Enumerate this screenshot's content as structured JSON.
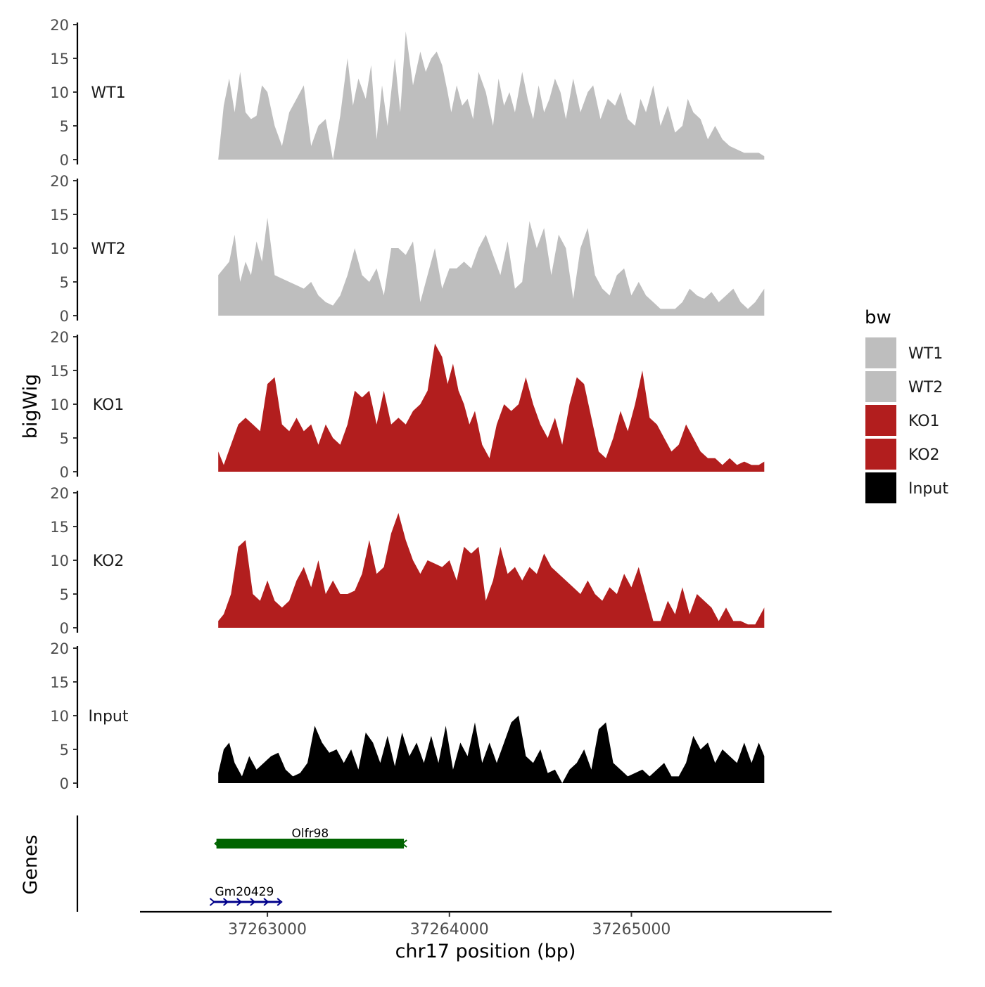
{
  "chart_data": {
    "type": "area",
    "title": "",
    "xlabel": "chr17 position (bp)",
    "ylabel": "bigWig",
    "genes_label": "Genes",
    "x_range": [
      37262300,
      37266100
    ],
    "y_range": [
      0,
      20
    ],
    "y_ticks": [
      0,
      5,
      10,
      15,
      20
    ],
    "y_tick_labels": [
      "0",
      "5",
      "10",
      "15",
      "20"
    ],
    "x_ticks": [
      37263000,
      37264000,
      37265000
    ],
    "x_tick_labels": [
      "37263000",
      "37264000",
      "37265000"
    ],
    "legend": {
      "title": "bw",
      "position": "right",
      "entries": [
        {
          "label": "WT1",
          "color": "#bebebe"
        },
        {
          "label": "WT2",
          "color": "#bebebe"
        },
        {
          "label": "KO1",
          "color": "#b21e1e"
        },
        {
          "label": "KO2",
          "color": "#b21e1e"
        },
        {
          "label": "Input",
          "color": "#000000"
        }
      ]
    },
    "series": [
      {
        "name": "WT1",
        "color": "#bebebe",
        "x": [
          37262730,
          37262760,
          37262790,
          37262820,
          37262850,
          37262880,
          37262910,
          37262940,
          37262970,
          37263000,
          37263040,
          37263080,
          37263120,
          37263160,
          37263200,
          37263240,
          37263280,
          37263320,
          37263360,
          37263400,
          37263440,
          37263470,
          37263500,
          37263540,
          37263570,
          37263600,
          37263630,
          37263660,
          37263700,
          37263730,
          37263760,
          37263800,
          37263840,
          37263870,
          37263900,
          37263930,
          37263960,
          37263990,
          37264010,
          37264040,
          37264070,
          37264100,
          37264130,
          37264160,
          37264200,
          37264240,
          37264270,
          37264300,
          37264330,
          37264360,
          37264400,
          37264430,
          37264460,
          37264490,
          37264520,
          37264550,
          37264580,
          37264610,
          37264640,
          37264680,
          37264720,
          37264760,
          37264790,
          37264830,
          37264870,
          37264910,
          37264940,
          37264980,
          37265020,
          37265050,
          37265080,
          37265120,
          37265160,
          37265200,
          37265240,
          37265280,
          37265310,
          37265340,
          37265380,
          37265420,
          37265460,
          37265500,
          37265540,
          37265580,
          37265620,
          37265660,
          37265700,
          37265730
        ],
        "y": [
          0,
          8,
          12,
          7,
          13,
          7,
          6,
          6.5,
          11,
          10,
          5,
          2,
          7,
          9,
          11,
          2,
          5,
          6,
          0,
          6.5,
          15,
          8,
          12,
          9,
          14,
          3,
          11,
          5,
          15,
          7,
          19,
          11,
          16,
          13,
          15,
          16,
          14,
          10,
          7,
          11,
          8,
          9,
          6,
          13,
          10,
          5,
          12,
          8,
          10,
          7,
          13,
          9,
          6,
          11,
          7,
          9,
          12,
          10,
          6,
          12,
          7,
          10,
          11,
          6,
          9,
          8,
          10,
          6,
          5,
          9,
          7,
          11,
          5,
          8,
          4,
          5,
          9,
          7,
          6,
          3,
          5,
          3,
          2,
          1.5,
          1,
          1,
          1,
          0.5
        ]
      },
      {
        "name": "WT2",
        "color": "#bebebe",
        "x": [
          37262730,
          37262760,
          37262790,
          37262820,
          37262850,
          37262880,
          37262910,
          37262940,
          37262970,
          37263000,
          37263040,
          37263080,
          37263120,
          37263160,
          37263200,
          37263240,
          37263280,
          37263320,
          37263360,
          37263400,
          37263440,
          37263480,
          37263520,
          37263560,
          37263600,
          37263640,
          37263680,
          37263720,
          37263760,
          37263800,
          37263840,
          37263880,
          37263920,
          37263960,
          37264000,
          37264040,
          37264080,
          37264120,
          37264160,
          37264200,
          37264240,
          37264280,
          37264320,
          37264360,
          37264400,
          37264440,
          37264480,
          37264520,
          37264560,
          37264600,
          37264640,
          37264680,
          37264720,
          37264760,
          37264800,
          37264840,
          37264880,
          37264920,
          37264960,
          37265000,
          37265040,
          37265080,
          37265120,
          37265160,
          37265200,
          37265240,
          37265280,
          37265320,
          37265360,
          37265400,
          37265440,
          37265480,
          37265520,
          37265560,
          37265600,
          37265640,
          37265680,
          37265730
        ],
        "y": [
          6,
          7,
          8,
          12,
          5,
          8,
          6,
          11,
          8,
          14.5,
          6,
          5.5,
          5,
          4.5,
          4,
          5,
          3,
          2,
          1.5,
          3,
          6,
          10,
          6,
          5,
          7,
          3,
          10,
          10,
          9,
          11,
          2,
          6,
          10,
          4,
          7,
          7,
          8,
          7,
          10,
          12,
          9,
          6,
          11,
          4,
          5,
          14,
          10,
          13,
          6,
          12,
          10,
          2.5,
          10,
          13,
          6,
          4,
          3,
          6,
          7,
          3,
          5,
          3,
          2,
          1,
          1,
          1,
          2,
          4,
          3,
          2.5,
          3.5,
          2,
          3,
          4,
          2,
          1,
          2,
          4
        ]
      },
      {
        "name": "KO1",
        "color": "#b21e1e",
        "x": [
          37262730,
          37262760,
          37262800,
          37262840,
          37262880,
          37262920,
          37262960,
          37263000,
          37263040,
          37263080,
          37263120,
          37263160,
          37263200,
          37263240,
          37263280,
          37263320,
          37263360,
          37263400,
          37263440,
          37263480,
          37263520,
          37263560,
          37263600,
          37263640,
          37263680,
          37263720,
          37263760,
          37263800,
          37263840,
          37263880,
          37263920,
          37263960,
          37263990,
          37264020,
          37264050,
          37264080,
          37264110,
          37264140,
          37264180,
          37264220,
          37264260,
          37264300,
          37264340,
          37264380,
          37264420,
          37264460,
          37264500,
          37264540,
          37264580,
          37264620,
          37264660,
          37264700,
          37264740,
          37264780,
          37264820,
          37264860,
          37264900,
          37264940,
          37264980,
          37265020,
          37265060,
          37265100,
          37265140,
          37265180,
          37265220,
          37265260,
          37265300,
          37265340,
          37265380,
          37265420,
          37265460,
          37265500,
          37265540,
          37265580,
          37265620,
          37265660,
          37265700,
          37265730
        ],
        "y": [
          3,
          1,
          4,
          7,
          8,
          7,
          6,
          13,
          14,
          7,
          6,
          8,
          6,
          7,
          4,
          7,
          5,
          4,
          7,
          12,
          11,
          12,
          7,
          12,
          7,
          8,
          7,
          9,
          10,
          12,
          19,
          17,
          13,
          16,
          12,
          10,
          7,
          9,
          4,
          2,
          7,
          10,
          9,
          10,
          14,
          10,
          7,
          5,
          8,
          4,
          10,
          14,
          13,
          8,
          3,
          2,
          5,
          9,
          6,
          10,
          15,
          8,
          7,
          5,
          3,
          4,
          7,
          5,
          3,
          2,
          2,
          1,
          2,
          1,
          1.5,
          1,
          1,
          1.5
        ]
      },
      {
        "name": "KO2",
        "color": "#b21e1e",
        "x": [
          37262730,
          37262760,
          37262800,
          37262840,
          37262880,
          37262920,
          37262960,
          37263000,
          37263040,
          37263080,
          37263120,
          37263160,
          37263200,
          37263240,
          37263280,
          37263320,
          37263360,
          37263400,
          37263440,
          37263480,
          37263520,
          37263560,
          37263600,
          37263640,
          37263680,
          37263720,
          37263760,
          37263800,
          37263840,
          37263880,
          37263920,
          37263960,
          37264000,
          37264040,
          37264080,
          37264120,
          37264160,
          37264200,
          37264240,
          37264280,
          37264320,
          37264360,
          37264400,
          37264440,
          37264480,
          37264520,
          37264560,
          37264600,
          37264640,
          37264680,
          37264720,
          37264760,
          37264800,
          37264840,
          37264880,
          37264920,
          37264960,
          37265000,
          37265040,
          37265080,
          37265120,
          37265160,
          37265200,
          37265240,
          37265280,
          37265320,
          37265360,
          37265400,
          37265440,
          37265480,
          37265520,
          37265560,
          37265600,
          37265640,
          37265680,
          37265730
        ],
        "y": [
          1,
          2,
          5,
          12,
          13,
          5,
          4,
          7,
          4,
          3,
          4,
          7,
          9,
          6,
          10,
          5,
          7,
          5,
          5,
          5.5,
          8,
          13,
          8,
          9,
          14,
          17,
          13,
          10,
          8,
          10,
          9.5,
          9,
          10,
          7,
          12,
          11,
          12,
          4,
          7,
          12,
          8,
          9,
          7,
          9,
          8,
          11,
          9,
          8,
          7,
          6,
          5,
          7,
          5,
          4,
          6,
          5,
          8,
          6,
          9,
          5,
          1,
          1,
          4,
          2,
          6,
          2,
          5,
          4,
          3,
          1,
          3,
          1,
          1,
          0.5,
          0.5,
          3
        ]
      },
      {
        "name": "Input",
        "color": "#000000",
        "x": [
          37262730,
          37262760,
          37262790,
          37262820,
          37262860,
          37262900,
          37262940,
          37262980,
          37263020,
          37263060,
          37263100,
          37263140,
          37263180,
          37263220,
          37263260,
          37263300,
          37263340,
          37263380,
          37263420,
          37263460,
          37263500,
          37263540,
          37263580,
          37263620,
          37263660,
          37263700,
          37263740,
          37263780,
          37263820,
          37263860,
          37263900,
          37263940,
          37263980,
          37264020,
          37264060,
          37264100,
          37264140,
          37264180,
          37264220,
          37264260,
          37264300,
          37264340,
          37264380,
          37264420,
          37264460,
          37264500,
          37264540,
          37264580,
          37264620,
          37264660,
          37264700,
          37264740,
          37264780,
          37264820,
          37264860,
          37264900,
          37264940,
          37264980,
          37265020,
          37265060,
          37265100,
          37265140,
          37265180,
          37265220,
          37265260,
          37265300,
          37265340,
          37265380,
          37265420,
          37265460,
          37265500,
          37265540,
          37265580,
          37265620,
          37265660,
          37265700,
          37265730
        ],
        "y": [
          1.5,
          5,
          6,
          3,
          1,
          4,
          2,
          3,
          4,
          4.5,
          2,
          1,
          1.5,
          3,
          8.5,
          6,
          4.5,
          5,
          3,
          5,
          2,
          7.5,
          6,
          3,
          7,
          2.5,
          7.5,
          4,
          6,
          3,
          7,
          3,
          8.5,
          2,
          6,
          4,
          9,
          3,
          6,
          3,
          6,
          9,
          10,
          4,
          3,
          5,
          1.5,
          2,
          0,
          2,
          3,
          5,
          2,
          8,
          9,
          3,
          2,
          1,
          1.5,
          2,
          1,
          2,
          3,
          1,
          1,
          3,
          7,
          5,
          6,
          3,
          5,
          4,
          3,
          6,
          3,
          6,
          4
        ]
      }
    ],
    "genes": [
      {
        "name": "Olfr98",
        "start": 37262720,
        "end": 37263750,
        "strand": "-",
        "color": "#006400"
      },
      {
        "name": "Gm20429",
        "start": 37262700,
        "end": 37263070,
        "strand": "+",
        "color": "#00008b"
      }
    ]
  }
}
